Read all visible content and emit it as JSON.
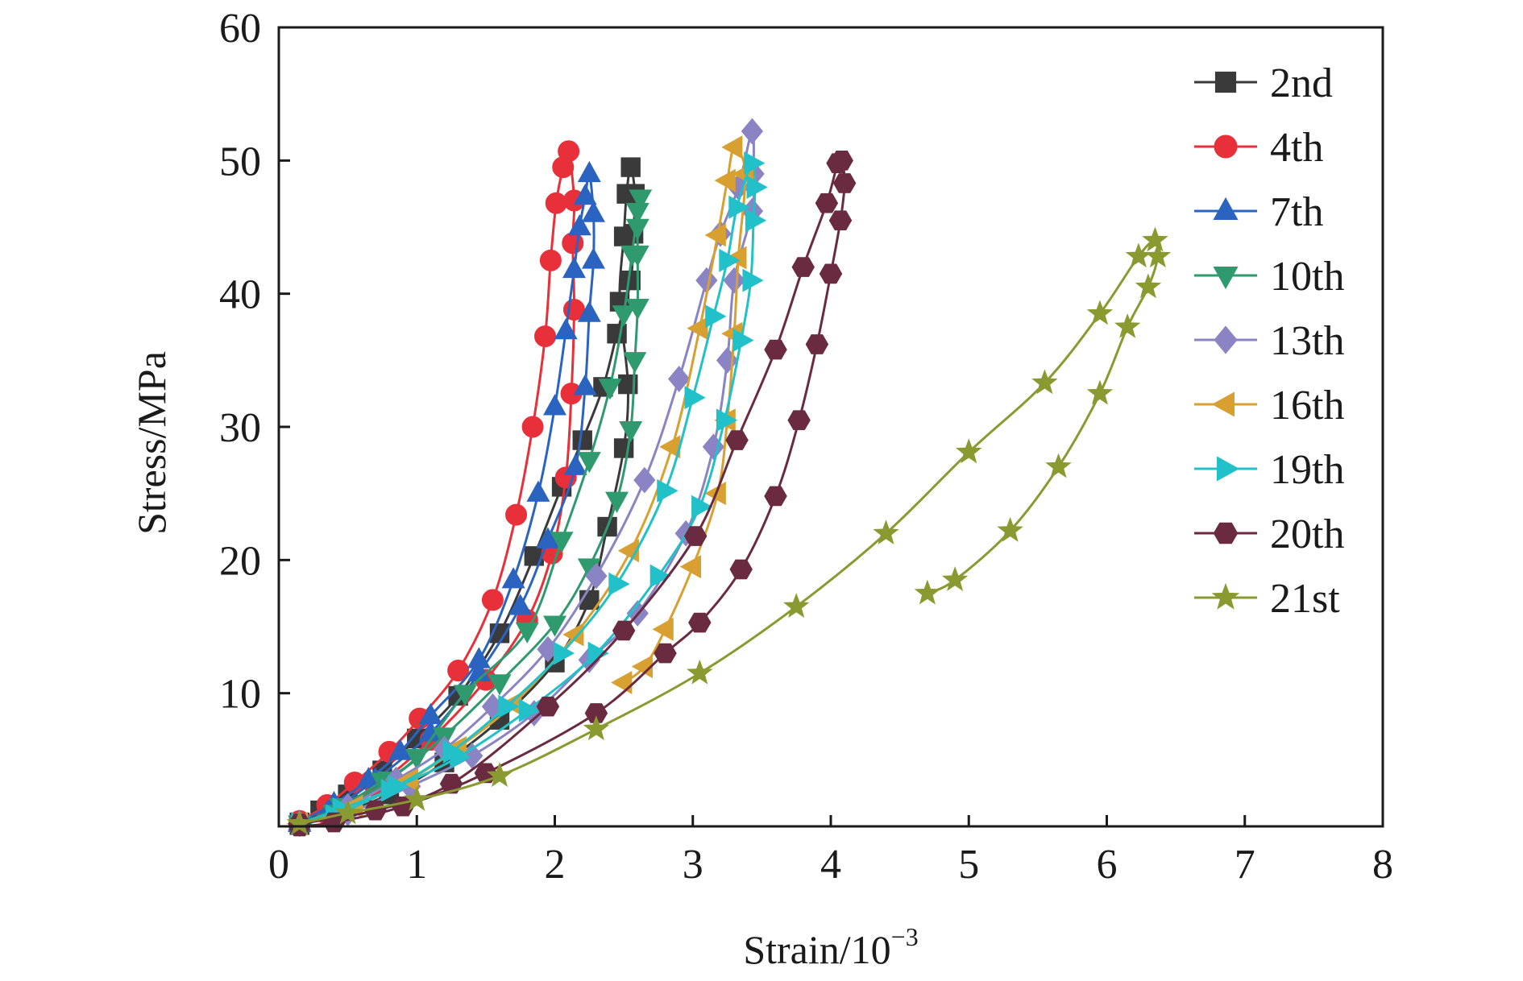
{
  "chart_data": {
    "type": "line",
    "xlabel": "Strain/10",
    "xlabel_exponent": "−3",
    "ylabel": "Stress/MPa",
    "xlim": [
      0,
      8
    ],
    "ylim": [
      0,
      60
    ],
    "xticks": [
      "0",
      "1",
      "2",
      "3",
      "4",
      "5",
      "6",
      "7",
      "8"
    ],
    "yticks": [
      "10",
      "20",
      "30",
      "40",
      "50",
      "60"
    ],
    "grid": false,
    "legend_position": "top-right",
    "series": [
      {
        "name": "2nd",
        "color": "#3a3a3a",
        "marker": "square",
        "points": [
          [
            0.15,
            0.3
          ],
          [
            0.3,
            1.2
          ],
          [
            0.5,
            2.4
          ],
          [
            0.75,
            4.2
          ],
          [
            1.0,
            6.6
          ],
          [
            1.3,
            9.8
          ],
          [
            1.6,
            14.5
          ],
          [
            1.85,
            20.3
          ],
          [
            2.05,
            25.5
          ],
          [
            2.2,
            29.0
          ],
          [
            2.35,
            33.0
          ],
          [
            2.45,
            37.0
          ],
          [
            2.55,
            41.0
          ],
          [
            2.57,
            44.5
          ],
          [
            2.58,
            47.5
          ],
          [
            2.55,
            49.5
          ],
          [
            2.52,
            47.5
          ],
          [
            2.5,
            44.3
          ],
          [
            2.47,
            39.4
          ],
          [
            2.53,
            33.2
          ],
          [
            2.5,
            28.4
          ],
          [
            2.38,
            22.5
          ],
          [
            2.25,
            17.0
          ],
          [
            2.0,
            12.3
          ],
          [
            1.6,
            8.0
          ],
          [
            1.2,
            4.8
          ],
          [
            0.8,
            2.4
          ],
          [
            0.4,
            0.8
          ],
          [
            0.15,
            0.1
          ]
        ]
      },
      {
        "name": "4th",
        "color": "#e8303a",
        "marker": "circle",
        "points": [
          [
            0.15,
            0.4
          ],
          [
            0.35,
            1.6
          ],
          [
            0.55,
            3.3
          ],
          [
            0.8,
            5.6
          ],
          [
            1.02,
            8.1
          ],
          [
            1.3,
            11.7
          ],
          [
            1.55,
            17.0
          ],
          [
            1.72,
            23.4
          ],
          [
            1.84,
            30.0
          ],
          [
            1.93,
            36.8
          ],
          [
            1.97,
            42.5
          ],
          [
            2.01,
            46.8
          ],
          [
            2.06,
            49.5
          ],
          [
            2.1,
            50.7
          ],
          [
            2.14,
            47.0
          ],
          [
            2.13,
            43.8
          ],
          [
            2.14,
            38.8
          ],
          [
            2.12,
            32.5
          ],
          [
            2.08,
            26.2
          ],
          [
            1.98,
            20.5
          ],
          [
            1.8,
            15.5
          ],
          [
            1.5,
            11.0
          ],
          [
            1.1,
            6.5
          ],
          [
            0.7,
            3.0
          ],
          [
            0.35,
            0.9
          ],
          [
            0.15,
            0.2
          ]
        ]
      },
      {
        "name": "7th",
        "color": "#2a64c0",
        "marker": "triangle-up",
        "points": [
          [
            0.15,
            0.3
          ],
          [
            0.4,
            1.7
          ],
          [
            0.65,
            3.5
          ],
          [
            0.88,
            5.6
          ],
          [
            1.1,
            8.3
          ],
          [
            1.45,
            12.5
          ],
          [
            1.7,
            18.5
          ],
          [
            1.88,
            25.0
          ],
          [
            2.0,
            31.5
          ],
          [
            2.08,
            37.2
          ],
          [
            2.14,
            41.8
          ],
          [
            2.18,
            45.0
          ],
          [
            2.22,
            47.3
          ],
          [
            2.25,
            49.0
          ],
          [
            2.28,
            46.0
          ],
          [
            2.28,
            42.5
          ],
          [
            2.25,
            38.5
          ],
          [
            2.22,
            33.0
          ],
          [
            2.15,
            27.0
          ],
          [
            1.95,
            21.5
          ],
          [
            1.75,
            16.5
          ],
          [
            1.45,
            11.5
          ],
          [
            1.1,
            7.0
          ],
          [
            0.7,
            3.5
          ],
          [
            0.35,
            1.0
          ],
          [
            0.15,
            0.2
          ]
        ]
      },
      {
        "name": "10th",
        "color": "#2e9a6e",
        "marker": "triangle-down",
        "points": [
          [
            0.15,
            0.2
          ],
          [
            0.45,
            1.5
          ],
          [
            0.75,
            3.4
          ],
          [
            1.0,
            5.2
          ],
          [
            1.35,
            10.0
          ],
          [
            1.8,
            14.7
          ],
          [
            2.05,
            21.5
          ],
          [
            2.25,
            27.5
          ],
          [
            2.4,
            33.0
          ],
          [
            2.5,
            38.5
          ],
          [
            2.56,
            43.0
          ],
          [
            2.6,
            46.2
          ],
          [
            2.62,
            47.2
          ],
          [
            2.6,
            45.0
          ],
          [
            2.6,
            43.0
          ],
          [
            2.6,
            39.0
          ],
          [
            2.58,
            35.0
          ],
          [
            2.55,
            29.8
          ],
          [
            2.45,
            24.5
          ],
          [
            2.25,
            19.5
          ],
          [
            2.0,
            15.2
          ],
          [
            1.6,
            10.8
          ],
          [
            1.2,
            6.8
          ],
          [
            0.8,
            3.5
          ],
          [
            0.4,
            1.0
          ],
          [
            0.15,
            0.2
          ]
        ]
      },
      {
        "name": "13th",
        "color": "#8a84c4",
        "marker": "diamond",
        "points": [
          [
            0.15,
            0.2
          ],
          [
            0.5,
            1.5
          ],
          [
            0.85,
            3.5
          ],
          [
            1.2,
            5.8
          ],
          [
            1.55,
            9.0
          ],
          [
            1.95,
            13.3
          ],
          [
            2.3,
            18.8
          ],
          [
            2.65,
            26.0
          ],
          [
            2.9,
            33.6
          ],
          [
            3.1,
            41.0
          ],
          [
            3.2,
            44.5
          ],
          [
            3.33,
            48.0
          ],
          [
            3.43,
            52.2
          ],
          [
            3.44,
            49.0
          ],
          [
            3.43,
            46.2
          ],
          [
            3.3,
            41.0
          ],
          [
            3.25,
            35.0
          ],
          [
            3.15,
            28.5
          ],
          [
            2.95,
            22.0
          ],
          [
            2.6,
            16.0
          ],
          [
            2.25,
            12.5
          ],
          [
            1.85,
            8.5
          ],
          [
            1.4,
            5.3
          ],
          [
            0.95,
            3.0
          ],
          [
            0.5,
            1.0
          ],
          [
            0.15,
            0.2
          ]
        ]
      },
      {
        "name": "16th",
        "color": "#d8a030",
        "marker": "triangle-left",
        "points": [
          [
            0.15,
            0.2
          ],
          [
            0.55,
            1.5
          ],
          [
            0.95,
            3.5
          ],
          [
            1.3,
            5.9
          ],
          [
            1.7,
            9.2
          ],
          [
            2.15,
            14.4
          ],
          [
            2.55,
            20.7
          ],
          [
            2.85,
            28.5
          ],
          [
            3.05,
            37.4
          ],
          [
            3.18,
            44.4
          ],
          [
            3.25,
            48.5
          ],
          [
            3.3,
            51.0
          ],
          [
            3.38,
            49.0
          ],
          [
            3.33,
            42.7
          ],
          [
            3.3,
            37.0
          ],
          [
            3.25,
            30.5
          ],
          [
            3.18,
            25.0
          ],
          [
            3.0,
            19.5
          ],
          [
            2.8,
            14.8
          ],
          [
            2.65,
            12.0
          ],
          [
            2.5,
            10.8
          ]
        ]
      },
      {
        "name": "19th",
        "color": "#22c0c8",
        "marker": "triangle-right",
        "points": [
          [
            0.15,
            0.2
          ],
          [
            0.45,
            1.3
          ],
          [
            0.85,
            3.0
          ],
          [
            1.25,
            5.6
          ],
          [
            1.65,
            9.0
          ],
          [
            2.05,
            13.0
          ],
          [
            2.45,
            18.2
          ],
          [
            2.8,
            25.2
          ],
          [
            3.0,
            32.2
          ],
          [
            3.15,
            38.3
          ],
          [
            3.25,
            42.5
          ],
          [
            3.32,
            46.5
          ],
          [
            3.43,
            49.8
          ],
          [
            3.45,
            48.0
          ],
          [
            3.44,
            45.5
          ],
          [
            3.42,
            41.0
          ],
          [
            3.35,
            36.5
          ],
          [
            3.23,
            30.5
          ],
          [
            3.05,
            24.0
          ],
          [
            2.75,
            18.8
          ],
          [
            2.3,
            13.0
          ],
          [
            1.8,
            8.7
          ],
          [
            1.3,
            5.2
          ],
          [
            0.8,
            2.7
          ],
          [
            0.4,
            0.8
          ],
          [
            0.15,
            0.2
          ]
        ]
      },
      {
        "name": "20th",
        "color": "#6a2a40",
        "marker": "hexagon",
        "points": [
          [
            0.15,
            0.2
          ],
          [
            0.7,
            1.2
          ],
          [
            1.25,
            3.2
          ],
          [
            1.95,
            9.0
          ],
          [
            2.5,
            14.7
          ],
          [
            3.02,
            21.8
          ],
          [
            3.32,
            29.0
          ],
          [
            3.6,
            35.8
          ],
          [
            3.8,
            42.0
          ],
          [
            3.97,
            46.8
          ],
          [
            4.05,
            49.8
          ],
          [
            4.08,
            50.0
          ],
          [
            4.1,
            48.3
          ],
          [
            4.07,
            45.5
          ],
          [
            4.0,
            41.5
          ],
          [
            3.9,
            36.2
          ],
          [
            3.77,
            30.5
          ],
          [
            3.6,
            24.8
          ],
          [
            3.35,
            19.3
          ],
          [
            3.05,
            15.3
          ],
          [
            2.8,
            13.0
          ],
          [
            2.3,
            8.5
          ],
          [
            1.5,
            4.0
          ],
          [
            0.9,
            1.5
          ],
          [
            0.4,
            0.3
          ],
          [
            0.15,
            0.0
          ]
        ]
      },
      {
        "name": "21st",
        "color": "#8a9a30",
        "marker": "star",
        "points": [
          [
            0.15,
            0.2
          ],
          [
            0.5,
            1.0
          ],
          [
            1.0,
            2.0
          ],
          [
            1.6,
            3.8
          ],
          [
            2.3,
            7.3
          ],
          [
            3.05,
            11.5
          ],
          [
            3.75,
            16.5
          ],
          [
            4.4,
            22.0
          ],
          [
            5.0,
            28.1
          ],
          [
            5.55,
            33.3
          ],
          [
            5.95,
            38.5
          ],
          [
            6.23,
            42.8
          ],
          [
            6.35,
            44.0
          ],
          [
            6.37,
            42.8
          ],
          [
            6.3,
            40.5
          ],
          [
            6.15,
            37.5
          ],
          [
            5.95,
            32.5
          ],
          [
            5.65,
            27.0
          ],
          [
            5.3,
            22.2
          ],
          [
            4.9,
            18.5
          ],
          [
            4.7,
            17.5
          ]
        ]
      }
    ]
  }
}
